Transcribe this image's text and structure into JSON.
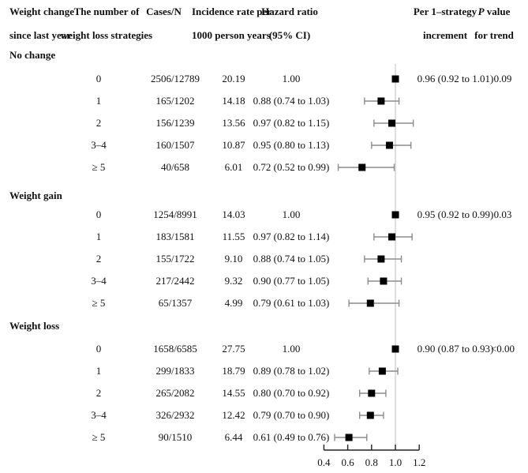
{
  "header": {
    "col1_line1": "Weight change",
    "col1_line2": "since last year",
    "col2_line1": "The number of",
    "col2_line2": "weight loss strategies",
    "col3_line1": "Cases/N",
    "col4_line1": "Incidence rate per",
    "col4_line2": "1000 person years",
    "col5_line1": "Hazard ratio",
    "col5_line2": "(95% CI)",
    "col6_line1": "Per 1–strategy",
    "col6_line2": "increment",
    "col7_p": "P",
    "col7_rest": " value",
    "col7_line2": "for trend"
  },
  "colors": {
    "marker": "#000000",
    "error_bar": "#8c8c8c",
    "reference_line": "#d4d4d4",
    "axis": "#222222",
    "text": "#111111"
  },
  "chart_data": {
    "type": "forest",
    "xlabel": "Hazard ratio (95% CI)",
    "xlim": [
      0.4,
      1.2
    ],
    "xticks": [
      0.4,
      0.6,
      0.8,
      1.0,
      1.2
    ],
    "reference_value": 1.0,
    "legend": "none",
    "groups": [
      {
        "label": "No change",
        "per_increment": "0.96 (0.92 to 1.01)",
        "p_trend": "0.09",
        "rows": [
          {
            "strategies": "0",
            "cases": "2506/12789",
            "rate": "20.19",
            "hr_text": "1.00",
            "hr": 1.0,
            "lo": null,
            "hi": null
          },
          {
            "strategies": "1",
            "cases": "165/1202",
            "rate": "14.18",
            "hr_text": "0.88 (0.74 to 1.03)",
            "hr": 0.88,
            "lo": 0.74,
            "hi": 1.03
          },
          {
            "strategies": "2",
            "cases": "156/1239",
            "rate": "13.56",
            "hr_text": "0.97 (0.82 to 1.15)",
            "hr": 0.97,
            "lo": 0.82,
            "hi": 1.15
          },
          {
            "strategies": "3–4",
            "cases": "160/1507",
            "rate": "10.87",
            "hr_text": "0.95 (0.80 to 1.13)",
            "hr": 0.95,
            "lo": 0.8,
            "hi": 1.13
          },
          {
            "strategies": "≥ 5",
            "cases": "40/658",
            "rate": "6.01",
            "hr_text": "0.72 (0.52 to 0.99)",
            "hr": 0.72,
            "lo": 0.52,
            "hi": 0.99
          }
        ]
      },
      {
        "label": "Weight gain",
        "per_increment": "0.95 (0.92 to 0.99)",
        "p_trend": "0.03",
        "rows": [
          {
            "strategies": "0",
            "cases": "1254/8991",
            "rate": "14.03",
            "hr_text": "1.00",
            "hr": 1.0,
            "lo": null,
            "hi": null
          },
          {
            "strategies": "1",
            "cases": "183/1581",
            "rate": "11.55",
            "hr_text": "0.97 (0.82 to 1.14)",
            "hr": 0.97,
            "lo": 0.82,
            "hi": 1.14
          },
          {
            "strategies": "2",
            "cases": "155/1722",
            "rate": "9.10",
            "hr_text": "0.88 (0.74 to 1.05)",
            "hr": 0.88,
            "lo": 0.74,
            "hi": 1.05
          },
          {
            "strategies": "3–4",
            "cases": "217/2442",
            "rate": "9.32",
            "hr_text": "0.90 (0.77 to 1.05)",
            "hr": 0.9,
            "lo": 0.77,
            "hi": 1.05
          },
          {
            "strategies": "≥ 5",
            "cases": "65/1357",
            "rate": "4.99",
            "hr_text": "0.79 (0.61 to 1.03)",
            "hr": 0.79,
            "lo": 0.61,
            "hi": 1.03
          }
        ]
      },
      {
        "label": "Weight loss",
        "per_increment": "0.90 (0.87 to 0.93)",
        "p_trend": "<0.00",
        "rows": [
          {
            "strategies": "0",
            "cases": "1658/6585",
            "rate": "27.75",
            "hr_text": "1.00",
            "hr": 1.0,
            "lo": null,
            "hi": null
          },
          {
            "strategies": "1",
            "cases": "299/1833",
            "rate": "18.79",
            "hr_text": "0.89 (0.78 to 1.02)",
            "hr": 0.89,
            "lo": 0.78,
            "hi": 1.02
          },
          {
            "strategies": "2",
            "cases": "265/2082",
            "rate": "14.55",
            "hr_text": "0.80 (0.70 to 0.92)",
            "hr": 0.8,
            "lo": 0.7,
            "hi": 0.92
          },
          {
            "strategies": "3–4",
            "cases": "326/2932",
            "rate": "12.42",
            "hr_text": "0.79 (0.70 to 0.90)",
            "hr": 0.79,
            "lo": 0.7,
            "hi": 0.9
          },
          {
            "strategies": "≥ 5",
            "cases": "90/1510",
            "rate": "6.44",
            "hr_text": "0.61 (0.49 to 0.76)",
            "hr": 0.61,
            "lo": 0.49,
            "hi": 0.76
          }
        ]
      }
    ]
  }
}
